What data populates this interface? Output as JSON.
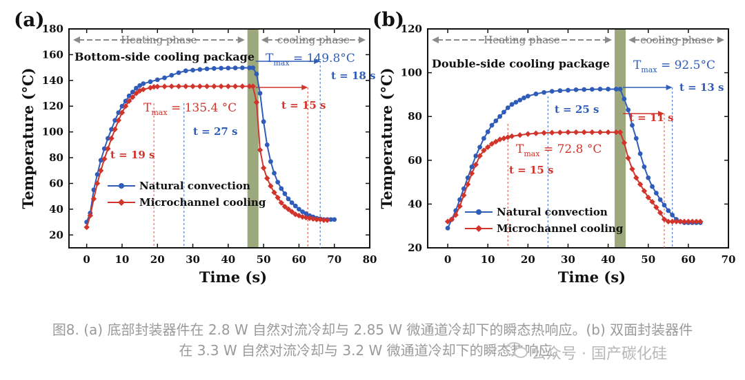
{
  "chart_data": [
    {
      "type": "line",
      "panel_label": "(a)",
      "title": "Bottom-side cooling package",
      "xlabel": "Time (s)",
      "ylabel": "Temperature (°C)",
      "xlim": [
        -5,
        80
      ],
      "ylim": [
        10,
        180
      ],
      "xticks": [
        0,
        10,
        20,
        30,
        40,
        50,
        60,
        70,
        80
      ],
      "yticks": [
        20,
        40,
        60,
        80,
        100,
        120,
        140,
        160,
        180
      ],
      "switch_time": 47,
      "phases": {
        "heating": "Heating phase",
        "cooling": "cooling phase"
      },
      "series": [
        {
          "name": "Natural convection",
          "color": "#2e5cb8",
          "marker": "circle",
          "points": [
            [
              0,
              30
            ],
            [
              1,
              37
            ],
            [
              2,
              55
            ],
            [
              3,
              67
            ],
            [
              4,
              78
            ],
            [
              5,
              87
            ],
            [
              6,
              95
            ],
            [
              7,
              102
            ],
            [
              8,
              109
            ],
            [
              9,
              115
            ],
            [
              10,
              120
            ],
            [
              11,
              124
            ],
            [
              12,
              128
            ],
            [
              13,
              131
            ],
            [
              14,
              134
            ],
            [
              15,
              136
            ],
            [
              16,
              137.5
            ],
            [
              18,
              139
            ],
            [
              20,
              140.5
            ],
            [
              22,
              142
            ],
            [
              24,
              144
            ],
            [
              26,
              146
            ],
            [
              28,
              147.5
            ],
            [
              30,
              148
            ],
            [
              32,
              148.5
            ],
            [
              34,
              149
            ],
            [
              36,
              149.3
            ],
            [
              38,
              149.5
            ],
            [
              40,
              149.6
            ],
            [
              42,
              149.7
            ],
            [
              44,
              149.8
            ],
            [
              46,
              149.8
            ],
            [
              47,
              149.8
            ],
            [
              48,
              145
            ],
            [
              49,
              130
            ],
            [
              50,
              108
            ],
            [
              51,
              90
            ],
            [
              52,
              77
            ],
            [
              53,
              68
            ],
            [
              54,
              61
            ],
            [
              55,
              56
            ],
            [
              56,
              52
            ],
            [
              57,
              48
            ],
            [
              58,
              45
            ],
            [
              59,
              42.5
            ],
            [
              60,
              40
            ],
            [
              61,
              38
            ],
            [
              62,
              36.5
            ],
            [
              63,
              35
            ],
            [
              64,
              34
            ],
            [
              65,
              33
            ],
            [
              66,
              32.5
            ],
            [
              67,
              32
            ],
            [
              68,
              32
            ],
            [
              69,
              32
            ],
            [
              70,
              32
            ]
          ]
        },
        {
          "name": "Microchannel cooling",
          "color": "#d1342a",
          "marker": "diamond",
          "points": [
            [
              0,
              26
            ],
            [
              1,
              35
            ],
            [
              2,
              48
            ],
            [
              3,
              60
            ],
            [
              4,
              70
            ],
            [
              5,
              79
            ],
            [
              6,
              87
            ],
            [
              7,
              95
            ],
            [
              8,
              102
            ],
            [
              9,
              109
            ],
            [
              10,
              115
            ],
            [
              11,
              120
            ],
            [
              12,
              124
            ],
            [
              13,
              127
            ],
            [
              14,
              130
            ],
            [
              15,
              132
            ],
            [
              16,
              133
            ],
            [
              18,
              134.3
            ],
            [
              19,
              135
            ],
            [
              20,
              135.2
            ],
            [
              22,
              135.3
            ],
            [
              24,
              135.4
            ],
            [
              26,
              135.4
            ],
            [
              28,
              135.4
            ],
            [
              30,
              135.4
            ],
            [
              32,
              135.4
            ],
            [
              34,
              135.4
            ],
            [
              36,
              135.4
            ],
            [
              38,
              135.4
            ],
            [
              40,
              135.4
            ],
            [
              42,
              135.4
            ],
            [
              44,
              135.4
            ],
            [
              46,
              135.4
            ],
            [
              47,
              135.4
            ],
            [
              48,
              123
            ],
            [
              49,
              86
            ],
            [
              50,
              72
            ],
            [
              51,
              64
            ],
            [
              52,
              58
            ],
            [
              53,
              53
            ],
            [
              54,
              49
            ],
            [
              55,
              45
            ],
            [
              56,
              42
            ],
            [
              57,
              40
            ],
            [
              58,
              38
            ],
            [
              59,
              36
            ],
            [
              60,
              35
            ],
            [
              61,
              34
            ],
            [
              62,
              33.5
            ],
            [
              63,
              33
            ],
            [
              64,
              32.5
            ],
            [
              65,
              32
            ],
            [
              66,
              32
            ],
            [
              67,
              31.5
            ],
            [
              68,
              31.5
            ]
          ]
        }
      ],
      "annotations": {
        "tmax_blue": "149.8°C",
        "tmax_red": "135.4 °C",
        "t_blue_heat": "t = 27 s",
        "t_red_heat": "t = 19 s",
        "t_blue_cool": "t = 18 s",
        "t_red_cool": "t = 15 s"
      },
      "markers_time": {
        "red_heat": 19,
        "blue_heat": 27.5,
        "red_cool": 62.5,
        "blue_cool": 66
      }
    },
    {
      "type": "line",
      "panel_label": "(b)",
      "title": "Double-side cooling  package",
      "xlabel": "Time (s)",
      "ylabel": "Temperature (°C)",
      "xlim": [
        -5,
        70
      ],
      "ylim": [
        20,
        120
      ],
      "xticks": [
        0,
        10,
        20,
        30,
        40,
        50,
        60,
        70
      ],
      "yticks": [
        20,
        40,
        60,
        80,
        100,
        120
      ],
      "switch_time": 43,
      "phases": {
        "heating": "Heating phase",
        "cooling": "cooling phase"
      },
      "series": [
        {
          "name": "Natural convection",
          "color": "#2e5cb8",
          "marker": "circle",
          "points": [
            [
              0,
              29
            ],
            [
              1,
              33
            ],
            [
              2,
              37
            ],
            [
              3,
              42
            ],
            [
              4,
              47
            ],
            [
              5,
              52
            ],
            [
              6,
              57
            ],
            [
              7,
              62
            ],
            [
              8,
              66
            ],
            [
              9,
              70
            ],
            [
              10,
              73
            ],
            [
              11,
              76
            ],
            [
              12,
              78
            ],
            [
              13,
              80
            ],
            [
              14,
              82
            ],
            [
              15,
              84
            ],
            [
              16,
              85.5
            ],
            [
              17,
              86.5
            ],
            [
              18,
              87.5
            ],
            [
              19,
              88.5
            ],
            [
              20,
              89.3
            ],
            [
              22,
              90.3
            ],
            [
              24,
              91
            ],
            [
              26,
              91.5
            ],
            [
              28,
              91.8
            ],
            [
              30,
              92
            ],
            [
              32,
              92.2
            ],
            [
              34,
              92.3
            ],
            [
              36,
              92.4
            ],
            [
              38,
              92.5
            ],
            [
              40,
              92.5
            ],
            [
              42,
              92.5
            ],
            [
              43,
              92.5
            ],
            [
              44,
              88
            ],
            [
              45,
              83
            ],
            [
              46,
              76
            ],
            [
              47,
              70
            ],
            [
              48,
              63
            ],
            [
              49,
              57
            ],
            [
              50,
              52
            ],
            [
              51,
              48
            ],
            [
              52,
              45
            ],
            [
              53,
              42
            ],
            [
              54,
              39.5
            ],
            [
              55,
              37
            ],
            [
              56,
              35
            ],
            [
              57,
              33
            ],
            [
              58,
              32
            ],
            [
              59,
              31.5
            ],
            [
              60,
              31.5
            ],
            [
              61,
              31.5
            ],
            [
              62,
              31.5
            ],
            [
              63,
              31.5
            ]
          ]
        },
        {
          "name": "Microchannel cooling",
          "color": "#d1342a",
          "marker": "diamond",
          "points": [
            [
              0,
              32
            ],
            [
              1,
              33
            ],
            [
              2,
              35
            ],
            [
              3,
              39
            ],
            [
              4,
              44
            ],
            [
              5,
              49
            ],
            [
              6,
              54
            ],
            [
              7,
              58
            ],
            [
              8,
              62
            ],
            [
              9,
              64.5
            ],
            [
              10,
              66
            ],
            [
              11,
              67.5
            ],
            [
              12,
              68.5
            ],
            [
              13,
              69.5
            ],
            [
              14,
              70
            ],
            [
              15,
              70.5
            ],
            [
              16,
              71
            ],
            [
              18,
              71.5
            ],
            [
              20,
              72
            ],
            [
              22,
              72.3
            ],
            [
              24,
              72.5
            ],
            [
              26,
              72.6
            ],
            [
              28,
              72.7
            ],
            [
              30,
              72.8
            ],
            [
              32,
              72.8
            ],
            [
              34,
              72.8
            ],
            [
              36,
              72.8
            ],
            [
              38,
              72.8
            ],
            [
              40,
              72.8
            ],
            [
              42,
              72.8
            ],
            [
              43,
              72.8
            ],
            [
              44,
              68
            ],
            [
              45,
              61
            ],
            [
              46,
              56
            ],
            [
              47,
              52
            ],
            [
              48,
              49
            ],
            [
              49,
              46
            ],
            [
              50,
              43
            ],
            [
              51,
              41
            ],
            [
              52,
              38.5
            ],
            [
              53,
              36
            ],
            [
              54,
              33
            ],
            [
              55,
              32
            ],
            [
              56,
              32
            ],
            [
              57,
              32
            ],
            [
              58,
              32
            ],
            [
              59,
              32
            ],
            [
              60,
              32
            ],
            [
              61,
              32
            ],
            [
              62,
              32
            ],
            [
              63,
              32
            ]
          ]
        }
      ],
      "annotations": {
        "tmax_blue": "92.5°C",
        "tmax_red": "72.8 °C",
        "t_blue_heat": "t = 25 s",
        "t_red_heat": "t = 15 s",
        "t_blue_cool": "t = 13 s",
        "t_red_cool": "t = 11 s"
      },
      "markers_time": {
        "red_heat": 15,
        "blue_heat": 25,
        "red_cool": 54,
        "blue_cool": 56
      }
    }
  ],
  "caption": {
    "line1": "图8. (a) 底部封装器件在 2.8 W 自然对流冷却与 2.85 W 微通道冷却下的瞬态热响应。(b) 双面封装器件",
    "line2": "在 3.3 W 自然对流冷却与 3.2 W 微通道冷却下的瞬态热响应。"
  },
  "watermark": {
    "text": "公众号 · 国产碳化硅",
    "icon": "wechat-icon"
  }
}
